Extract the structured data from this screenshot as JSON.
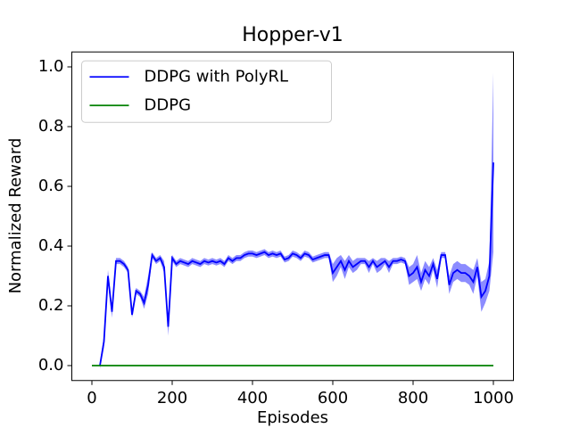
{
  "chart_data": {
    "type": "line",
    "title": "Hopper-v1",
    "xlabel": "Episodes",
    "ylabel": "Normalized Reward",
    "xlim": [
      -50,
      1050
    ],
    "ylim": [
      -0.05,
      1.05
    ],
    "xticks": [
      0,
      200,
      400,
      600,
      800,
      1000
    ],
    "yticks": [
      {
        "value": 0,
        "label": "0.0"
      },
      0.2,
      0.4,
      0.6,
      0.8,
      {
        "value": 1,
        "label": "1.0"
      }
    ],
    "legend": "upper left",
    "series": [
      {
        "name": "DDPG with PolyRL",
        "color": "#0000ff",
        "band_color": "#8080ff",
        "x": [
          20,
          30,
          40,
          50,
          60,
          70,
          80,
          90,
          100,
          110,
          120,
          130,
          140,
          150,
          160,
          170,
          180,
          190,
          200,
          210,
          220,
          230,
          240,
          250,
          260,
          270,
          280,
          290,
          300,
          310,
          320,
          330,
          340,
          350,
          360,
          370,
          380,
          390,
          400,
          410,
          420,
          430,
          440,
          450,
          460,
          470,
          480,
          490,
          500,
          510,
          520,
          530,
          540,
          550,
          560,
          570,
          580,
          590,
          600,
          610,
          620,
          630,
          640,
          650,
          660,
          670,
          680,
          690,
          700,
          710,
          720,
          730,
          740,
          750,
          760,
          770,
          780,
          790,
          800,
          810,
          820,
          830,
          840,
          850,
          860,
          870,
          880,
          890,
          900,
          910,
          920,
          930,
          940,
          950,
          960,
          970,
          980,
          990,
          1000
        ],
        "values": [
          0,
          0.08,
          0.3,
          0.18,
          0.35,
          0.35,
          0.34,
          0.32,
          0.17,
          0.25,
          0.24,
          0.21,
          0.27,
          0.37,
          0.35,
          0.36,
          0.33,
          0.13,
          0.36,
          0.34,
          0.35,
          0.345,
          0.34,
          0.35,
          0.345,
          0.34,
          0.35,
          0.345,
          0.35,
          0.345,
          0.35,
          0.34,
          0.36,
          0.35,
          0.36,
          0.36,
          0.37,
          0.375,
          0.375,
          0.37,
          0.375,
          0.38,
          0.37,
          0.375,
          0.37,
          0.375,
          0.355,
          0.36,
          0.375,
          0.37,
          0.36,
          0.375,
          0.37,
          0.355,
          0.36,
          0.365,
          0.37,
          0.37,
          0.31,
          0.33,
          0.35,
          0.32,
          0.35,
          0.33,
          0.34,
          0.35,
          0.35,
          0.33,
          0.35,
          0.33,
          0.34,
          0.35,
          0.33,
          0.35,
          0.35,
          0.355,
          0.35,
          0.3,
          0.31,
          0.33,
          0.28,
          0.32,
          0.3,
          0.34,
          0.29,
          0.37,
          0.37,
          0.27,
          0.31,
          0.32,
          0.31,
          0.31,
          0.3,
          0.28,
          0.33,
          0.23,
          0.25,
          0.3,
          0.68
        ],
        "band": [
          0.01,
          0.02,
          0.02,
          0.02,
          0.01,
          0.01,
          0.01,
          0.01,
          0.01,
          0.01,
          0.01,
          0.02,
          0.03,
          0.01,
          0.01,
          0.01,
          0.02,
          0.03,
          0.01,
          0.01,
          0.01,
          0.01,
          0.01,
          0.01,
          0.01,
          0.01,
          0.01,
          0.01,
          0.01,
          0.01,
          0.01,
          0.01,
          0.01,
          0.01,
          0.01,
          0.01,
          0.01,
          0.01,
          0.01,
          0.01,
          0.01,
          0.01,
          0.01,
          0.01,
          0.01,
          0.01,
          0.01,
          0.01,
          0.01,
          0.01,
          0.01,
          0.01,
          0.01,
          0.01,
          0.01,
          0.01,
          0.01,
          0.01,
          0.03,
          0.03,
          0.02,
          0.03,
          0.02,
          0.02,
          0.02,
          0.01,
          0.01,
          0.02,
          0.01,
          0.02,
          0.02,
          0.01,
          0.02,
          0.01,
          0.01,
          0.01,
          0.01,
          0.03,
          0.03,
          0.04,
          0.03,
          0.03,
          0.03,
          0.02,
          0.03,
          0.01,
          0.01,
          0.03,
          0.03,
          0.03,
          0.03,
          0.03,
          0.03,
          0.04,
          0.03,
          0.05,
          0.04,
          0.05,
          0.3
        ]
      },
      {
        "name": "DDPG",
        "color": "#008000",
        "x": [
          0,
          1000
        ],
        "values": [
          0,
          0
        ]
      }
    ]
  }
}
